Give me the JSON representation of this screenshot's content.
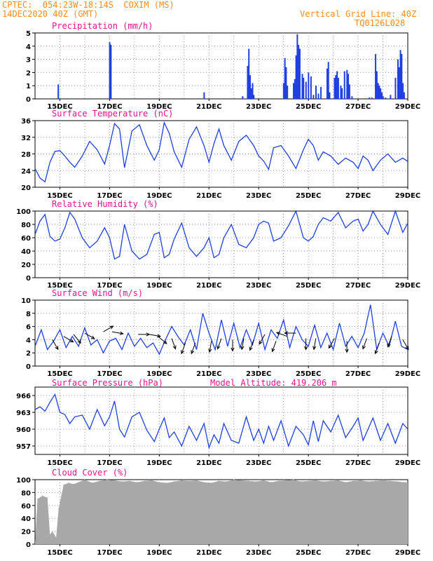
{
  "header": {
    "line1": "CPTEC:  054:23W-18:14S  COXIM (MS)",
    "line2": "14DEC2020 40Z (GMT)",
    "grid_note": "Vertical Grid Line: 40Z",
    "run_id": "TQ0126L028"
  },
  "colors": {
    "header": "#ff8c1a",
    "titles": "#e8118c",
    "series": "#1f3fe0",
    "cloud": "#a8a8a8",
    "wind_arrow": "#000000"
  },
  "x_ticks": [
    "15DEC",
    "17DEC",
    "19DEC",
    "21DEC",
    "23DEC",
    "25DEC",
    "27DEC",
    "29DEC"
  ],
  "chart_data": [
    {
      "type": "bar",
      "title": "Precipitation (mm/h)",
      "ylim": [
        0,
        5
      ],
      "yticks": [
        "0",
        "1",
        "2",
        "3",
        "4",
        "5"
      ],
      "x_day_range": [
        14,
        29
      ],
      "x": [
        14.93,
        17.0,
        17.05,
        20.8,
        22.35,
        22.55,
        22.6,
        22.65,
        22.7,
        22.75,
        22.8,
        24.0,
        24.05,
        24.1,
        24.15,
        24.4,
        24.45,
        24.5,
        24.55,
        24.6,
        24.65,
        24.75,
        24.8,
        24.9,
        25.0,
        25.1,
        25.2,
        25.3,
        25.4,
        25.5,
        25.75,
        25.8,
        25.85,
        26.05,
        26.1,
        26.15,
        26.2,
        26.3,
        26.35,
        26.45,
        26.55,
        26.6,
        26.65,
        26.75,
        27.45,
        27.55,
        27.7,
        27.75,
        27.8,
        27.85,
        27.9,
        27.95,
        28.0,
        28.1,
        28.3,
        28.5,
        28.6,
        28.65,
        28.7,
        28.75,
        28.8,
        28.85
      ],
      "values": [
        1.1,
        4.3,
        4.1,
        0.5,
        0.2,
        2.5,
        3.8,
        1.8,
        0.8,
        1.2,
        0.3,
        1.2,
        3.1,
        2.4,
        1.0,
        1.2,
        1.5,
        3.3,
        4.9,
        4.1,
        3.8,
        1.9,
        1.6,
        1.3,
        2.0,
        1.7,
        0.3,
        1.0,
        0.4,
        0.9,
        2.3,
        2.8,
        0.5,
        1.6,
        1.8,
        2.1,
        1.6,
        1.0,
        0.8,
        2.1,
        2.2,
        1.9,
        1.1,
        0.2,
        0.1,
        0.1,
        3.4,
        2.1,
        1.2,
        1.0,
        0.8,
        0.5,
        0.2,
        0.1,
        0.3,
        1.6,
        3.0,
        2.4,
        3.7,
        3.4,
        1.2,
        0.5
      ]
    },
    {
      "type": "line",
      "title": "Surface Temperature (nC)",
      "ylim": [
        20,
        36
      ],
      "yticks": [
        "20",
        "24",
        "28",
        "32",
        "36"
      ],
      "x_day_range": [
        14,
        29
      ],
      "x": [
        14.0,
        14.2,
        14.4,
        14.6,
        14.8,
        15.0,
        15.2,
        15.4,
        15.6,
        15.9,
        16.2,
        16.5,
        16.8,
        17.0,
        17.2,
        17.4,
        17.6,
        17.9,
        18.2,
        18.5,
        18.8,
        19.0,
        19.2,
        19.4,
        19.6,
        19.9,
        20.2,
        20.5,
        20.8,
        21.0,
        21.2,
        21.4,
        21.6,
        21.9,
        22.2,
        22.5,
        22.8,
        23.0,
        23.2,
        23.4,
        23.6,
        23.9,
        24.2,
        24.5,
        24.8,
        25.0,
        25.2,
        25.4,
        25.6,
        25.9,
        26.2,
        26.5,
        26.8,
        27.0,
        27.2,
        27.4,
        27.6,
        27.9,
        28.2,
        28.5,
        28.8,
        29.0
      ],
      "values": [
        24.5,
        22.2,
        21.3,
        26.0,
        28.6,
        28.8,
        27.5,
        26.0,
        24.8,
        27.5,
        31.0,
        29.0,
        25.6,
        30.0,
        35.3,
        34.0,
        24.7,
        33.5,
        35.0,
        30.0,
        26.5,
        29.0,
        35.5,
        33.0,
        28.5,
        24.8,
        31.5,
        34.5,
        30.0,
        26.0,
        30.5,
        34.0,
        30.0,
        26.5,
        31.0,
        32.5,
        30.0,
        27.5,
        26.3,
        24.3,
        29.5,
        30.0,
        27.5,
        24.5,
        29.0,
        31.5,
        30.0,
        26.5,
        28.5,
        27.5,
        25.5,
        27.0,
        26.0,
        24.5,
        27.5,
        26.5,
        24.0,
        26.5,
        28.0,
        26.0,
        27.0,
        26.2
      ]
    },
    {
      "type": "line",
      "title": "Relative Humidity (%)",
      "ylim": [
        0,
        100
      ],
      "yticks": [
        "0",
        "20",
        "40",
        "60",
        "80",
        "100"
      ],
      "x_day_range": [
        14,
        29
      ],
      "x": [
        14.0,
        14.2,
        14.4,
        14.6,
        14.8,
        15.0,
        15.2,
        15.4,
        15.6,
        15.9,
        16.2,
        16.5,
        16.8,
        17.0,
        17.2,
        17.4,
        17.6,
        17.9,
        18.2,
        18.5,
        18.8,
        19.0,
        19.2,
        19.4,
        19.6,
        19.9,
        20.2,
        20.5,
        20.8,
        21.0,
        21.2,
        21.4,
        21.6,
        21.9,
        22.2,
        22.5,
        22.8,
        23.0,
        23.2,
        23.4,
        23.6,
        23.9,
        24.2,
        24.5,
        24.8,
        25.0,
        25.2,
        25.4,
        25.6,
        25.9,
        26.2,
        26.5,
        26.8,
        27.0,
        27.2,
        27.4,
        27.6,
        27.9,
        28.2,
        28.5,
        28.8,
        29.0
      ],
      "values": [
        65,
        85,
        95,
        62,
        55,
        58,
        75,
        98,
        88,
        60,
        45,
        55,
        75,
        60,
        28,
        32,
        80,
        40,
        28,
        35,
        65,
        68,
        30,
        35,
        58,
        82,
        45,
        32,
        45,
        60,
        30,
        35,
        60,
        80,
        50,
        45,
        60,
        80,
        85,
        82,
        55,
        60,
        78,
        100,
        60,
        55,
        62,
        80,
        90,
        85,
        98,
        75,
        85,
        88,
        70,
        80,
        100,
        80,
        65,
        100,
        68,
        82
      ]
    },
    {
      "type": "line",
      "title": "Surface Wind (m/s)",
      "ylim": [
        0,
        10
      ],
      "yticks": [
        "0",
        "2",
        "4",
        "6",
        "8",
        "10"
      ],
      "x_day_range": [
        14,
        29
      ],
      "x": [
        14.0,
        14.25,
        14.5,
        14.75,
        15.0,
        15.25,
        15.5,
        15.75,
        16.0,
        16.25,
        16.5,
        16.75,
        17.0,
        17.25,
        17.5,
        17.75,
        18.0,
        18.25,
        18.5,
        18.75,
        19.0,
        19.25,
        19.5,
        19.75,
        20.0,
        20.25,
        20.5,
        20.75,
        21.0,
        21.25,
        21.5,
        21.75,
        22.0,
        22.25,
        22.5,
        22.75,
        23.0,
        23.25,
        23.5,
        23.75,
        24.0,
        24.25,
        24.5,
        24.75,
        25.0,
        25.25,
        25.5,
        25.75,
        26.0,
        26.25,
        26.5,
        26.75,
        27.0,
        27.25,
        27.5,
        27.75,
        28.0,
        28.25,
        28.5,
        28.75,
        29.0
      ],
      "values": [
        3.0,
        5.5,
        2.5,
        3.8,
        5.5,
        2.8,
        4.5,
        3.0,
        5.8,
        3.2,
        4.0,
        2.0,
        3.8,
        4.2,
        2.5,
        5.0,
        3.0,
        4.2,
        2.8,
        3.5,
        1.8,
        4.0,
        6.0,
        4.5,
        3.2,
        5.5,
        2.5,
        8.0,
        5.0,
        2.5,
        7.0,
        3.0,
        6.5,
        2.8,
        5.5,
        3.2,
        6.5,
        2.5,
        5.5,
        4.2,
        7.0,
        2.8,
        6.0,
        4.0,
        3.0,
        6.2,
        2.8,
        5.0,
        2.5,
        6.5,
        3.0,
        4.5,
        2.8,
        5.0,
        9.3,
        2.5,
        5.0,
        3.0,
        6.8,
        3.0,
        2.5
      ],
      "arrows": [
        {
          "x": 14.7,
          "y": 4.0,
          "dir_deg": 150
        },
        {
          "x": 15.15,
          "y": 4.5,
          "dir_deg": 120
        },
        {
          "x": 15.55,
          "y": 4.8,
          "dir_deg": 140
        },
        {
          "x": 16.0,
          "y": 5.0,
          "dir_deg": 120
        },
        {
          "x": 16.75,
          "y": 5.2,
          "dir_deg": 60
        },
        {
          "x": 17.1,
          "y": 5.2,
          "dir_deg": 100
        },
        {
          "x": 18.15,
          "y": 4.8,
          "dir_deg": 90
        },
        {
          "x": 18.6,
          "y": 4.8,
          "dir_deg": 100
        },
        {
          "x": 18.95,
          "y": 4.5,
          "dir_deg": 130
        },
        {
          "x": 19.5,
          "y": 4.2,
          "dir_deg": 160
        },
        {
          "x": 20.05,
          "y": 3.5,
          "dir_deg": 200
        },
        {
          "x": 20.45,
          "y": 3.5,
          "dir_deg": 200
        },
        {
          "x": 21.1,
          "y": 3.8,
          "dir_deg": 190
        },
        {
          "x": 21.5,
          "y": 4.2,
          "dir_deg": 200
        },
        {
          "x": 21.95,
          "y": 4.0,
          "dir_deg": 180
        },
        {
          "x": 22.4,
          "y": 4.2,
          "dir_deg": 190
        },
        {
          "x": 22.8,
          "y": 4.0,
          "dir_deg": 200
        },
        {
          "x": 23.25,
          "y": 4.8,
          "dir_deg": 210
        },
        {
          "x": 23.7,
          "y": 3.8,
          "dir_deg": 200
        },
        {
          "x": 24.15,
          "y": 4.5,
          "dir_deg": 290
        },
        {
          "x": 24.5,
          "y": 5.0,
          "dir_deg": 270
        },
        {
          "x": 24.9,
          "y": 4.2,
          "dir_deg": 180
        },
        {
          "x": 25.3,
          "y": 4.2,
          "dir_deg": 190
        },
        {
          "x": 26.05,
          "y": 4.2,
          "dir_deg": 210
        },
        {
          "x": 26.55,
          "y": 3.8,
          "dir_deg": 180
        },
        {
          "x": 27.35,
          "y": 4.2,
          "dir_deg": 200
        },
        {
          "x": 27.85,
          "y": 3.5,
          "dir_deg": 200
        },
        {
          "x": 28.35,
          "y": 4.5,
          "dir_deg": 200
        },
        {
          "x": 28.8,
          "y": 4.0,
          "dir_deg": 150
        }
      ]
    },
    {
      "type": "line",
      "title": "Surface Pressure (hPa)",
      "extra_label": "Model Altitude: 419.206 m",
      "ylim": [
        955.5,
        967.5
      ],
      "yticks": [
        "957",
        "960",
        "963",
        "966"
      ],
      "x_day_range": [
        14,
        29
      ],
      "x": [
        14.0,
        14.2,
        14.4,
        14.6,
        14.8,
        15.0,
        15.2,
        15.4,
        15.6,
        15.9,
        16.2,
        16.5,
        16.8,
        17.0,
        17.2,
        17.4,
        17.6,
        17.9,
        18.2,
        18.5,
        18.8,
        19.0,
        19.2,
        19.4,
        19.6,
        19.9,
        20.2,
        20.5,
        20.8,
        21.0,
        21.2,
        21.4,
        21.6,
        21.9,
        22.2,
        22.5,
        22.8,
        23.0,
        23.2,
        23.4,
        23.6,
        23.9,
        24.2,
        24.5,
        24.8,
        25.0,
        25.2,
        25.4,
        25.6,
        25.9,
        26.2,
        26.5,
        26.8,
        27.0,
        27.2,
        27.4,
        27.6,
        27.9,
        28.2,
        28.5,
        28.8,
        29.0
      ],
      "values": [
        963.5,
        964.0,
        963.2,
        964.8,
        966.2,
        963.0,
        962.6,
        961.0,
        962.2,
        962.5,
        960.0,
        963.5,
        960.6,
        962.2,
        965.0,
        960.0,
        958.6,
        962.2,
        963.0,
        959.8,
        957.8,
        960.0,
        962.0,
        958.5,
        959.5,
        957.0,
        960.5,
        958.0,
        961.0,
        956.7,
        959.0,
        957.5,
        961.0,
        958.0,
        957.5,
        962.2,
        958.0,
        960.0,
        957.5,
        960.5,
        958.0,
        961.5,
        957.0,
        960.5,
        959.0,
        957.2,
        961.5,
        957.8,
        961.5,
        959.5,
        962.5,
        958.5,
        960.5,
        962.0,
        958.0,
        960.0,
        962.0,
        958.0,
        961.0,
        957.5,
        961.0,
        960.0
      ]
    },
    {
      "type": "bar",
      "title": "Cloud Cover (%)",
      "ylim": [
        0,
        100
      ],
      "yticks": [
        "0",
        "20",
        "40",
        "60",
        "80",
        "100"
      ],
      "x_day_range": [
        14,
        29
      ],
      "x": [
        14.1,
        14.3,
        14.5,
        14.6,
        14.7,
        14.85,
        14.95,
        15.15,
        15.35,
        15.55,
        15.75,
        16.0,
        16.3,
        16.6,
        16.9,
        17.2,
        17.5,
        17.8,
        18.1,
        18.4,
        18.7,
        19.0,
        19.3,
        19.6,
        19.9,
        20.2,
        20.5,
        20.8,
        21.1,
        21.4,
        21.7,
        22.0,
        22.3,
        22.6,
        22.9,
        23.2,
        23.5,
        23.8,
        24.1,
        24.4,
        24.7,
        25.0,
        25.3,
        25.6,
        25.9,
        26.2,
        26.5,
        26.8,
        27.1,
        27.4,
        27.7,
        28.0,
        28.3,
        28.6,
        28.85
      ],
      "values": [
        70,
        75,
        72,
        15,
        20,
        10,
        55,
        92,
        95,
        93,
        96,
        100,
        95,
        98,
        100,
        99,
        97,
        98,
        96,
        98,
        99,
        96,
        95,
        97,
        99,
        98,
        99,
        96,
        95,
        98,
        97,
        100,
        99,
        98,
        97,
        99,
        96,
        98,
        99,
        100,
        97,
        98,
        99,
        97,
        98,
        99,
        96,
        98,
        99,
        97,
        98,
        99,
        98,
        97,
        96
      ]
    }
  ]
}
